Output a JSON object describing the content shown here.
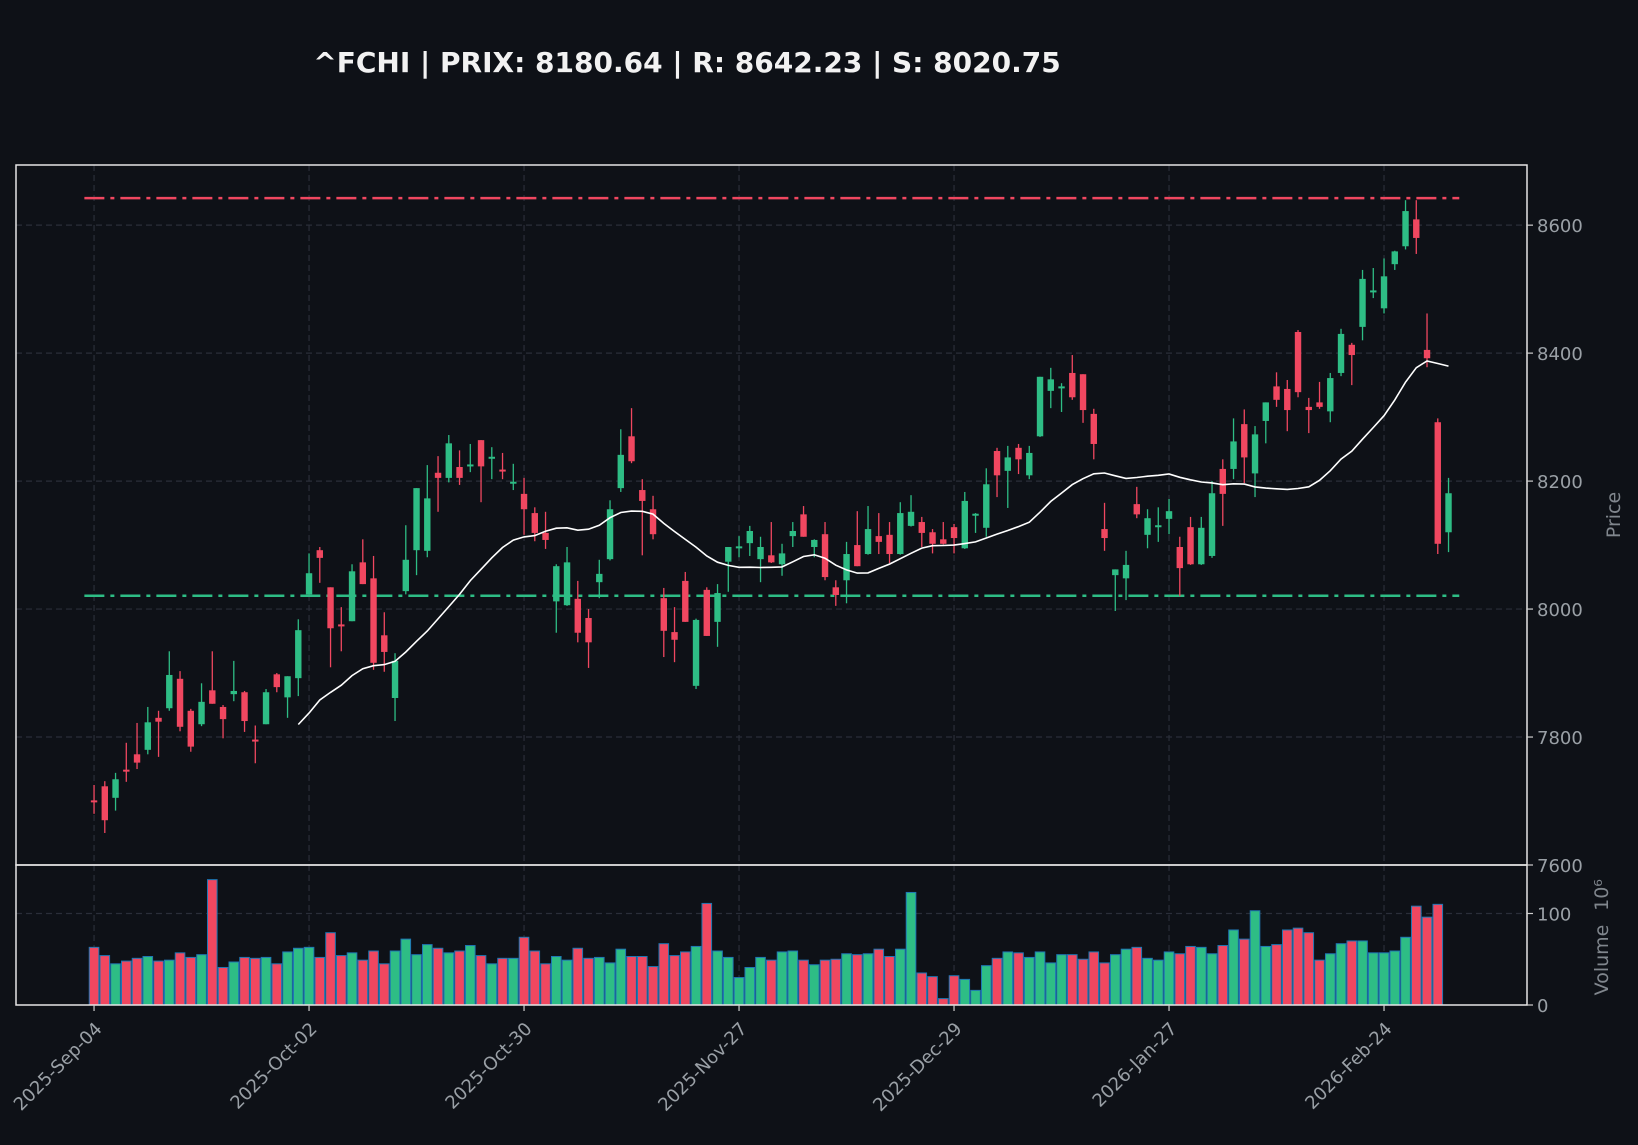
{
  "title": "^FCHI | PRIX: 8180.64 | R: 8642.23 | S: 8020.75",
  "colors": {
    "background": "#0e1117",
    "up": "#2ebd85",
    "down": "#f04760",
    "resistance": "#f04760",
    "support": "#2ebd85",
    "ma": "#ffffff",
    "volume_edge": "#1f77b4",
    "grid": "#2a2e39",
    "frame": "#e6e6e6"
  },
  "chart_data": {
    "type": "candlestick",
    "title": "^FCHI | PRIX: 8180.64 | R: 8642.23 | S: 8020.75",
    "price_label": "Price",
    "volume_label": "Volume",
    "volume_offset": "10⁶",
    "price_ylim": [
      7600,
      8694
    ],
    "volume_ylim": [
      0,
      153
    ],
    "xlim": [
      -7.26,
      133.3
    ],
    "price_ticks": [
      "7600",
      "7800",
      "8000",
      "8200",
      "8400",
      "8600"
    ],
    "volume_ticks": [
      "0",
      "100"
    ],
    "x_ticks": [
      {
        "index": 0,
        "label": "2025-Sep-04"
      },
      {
        "index": 20,
        "label": "2025-Oct-02"
      },
      {
        "index": 40,
        "label": "2025-Oct-30"
      },
      {
        "index": 60,
        "label": "2025-Nov-27"
      },
      {
        "index": 80,
        "label": "2025-Dec-29"
      },
      {
        "index": 100,
        "label": "2026-Jan-27"
      },
      {
        "index": 120,
        "label": "2026-Feb-24"
      }
    ],
    "resistance": 8642.23,
    "support": 8020.75,
    "ma_period": 20,
    "grid": true,
    "ohlc": [
      [
        7701,
        7725,
        7680,
        7699
      ],
      [
        7723,
        7731,
        7650,
        7670
      ],
      [
        7705,
        7744,
        7685,
        7734
      ],
      [
        7749,
        7791,
        7730,
        7747
      ],
      [
        7773,
        7822,
        7750,
        7760
      ],
      [
        7780,
        7847,
        7773,
        7823
      ],
      [
        7830,
        7841,
        7769,
        7824
      ],
      [
        7845,
        7934,
        7841,
        7897
      ],
      [
        7891,
        7903,
        7809,
        7816
      ],
      [
        7841,
        7844,
        7777,
        7785
      ],
      [
        7820,
        7884,
        7817,
        7855
      ],
      [
        7873,
        7934,
        7852,
        7852
      ],
      [
        7847,
        7850,
        7798,
        7828
      ],
      [
        7867,
        7919,
        7856,
        7872
      ],
      [
        7870,
        7872,
        7808,
        7825
      ],
      [
        7796,
        7818,
        7759,
        7794
      ],
      [
        7820,
        7875,
        7820,
        7870
      ],
      [
        7898,
        7900,
        7870,
        7878
      ],
      [
        7862,
        7895,
        7830,
        7895
      ],
      [
        7892,
        7984,
        7864,
        7967
      ],
      [
        8023,
        8087,
        8023,
        8056
      ],
      [
        8092,
        8097,
        8041,
        8080
      ],
      [
        8034,
        8034,
        7909,
        7970
      ],
      [
        7976,
        8003,
        7934,
        7974
      ],
      [
        7981,
        8070,
        7981,
        8059
      ],
      [
        8073,
        8109,
        8039,
        8039
      ],
      [
        8048,
        8083,
        7905,
        7916
      ],
      [
        7959,
        7995,
        7902,
        7933
      ],
      [
        7861,
        7931,
        7825,
        7919
      ],
      [
        8028,
        8131,
        8023,
        8077
      ],
      [
        8092,
        8189,
        8053,
        8189
      ],
      [
        8091,
        8225,
        8081,
        8173
      ],
      [
        8213,
        8239,
        8152,
        8205
      ],
      [
        8205,
        8272,
        8198,
        8259
      ],
      [
        8222,
        8248,
        8194,
        8205
      ],
      [
        8224,
        8258,
        8214,
        8226
      ],
      [
        8264,
        8264,
        8167,
        8223
      ],
      [
        8236,
        8253,
        8203,
        8238
      ],
      [
        8218,
        8244,
        8203,
        8216
      ],
      [
        8196,
        8227,
        8186,
        8199
      ],
      [
        8180,
        8205,
        8116,
        8156
      ],
      [
        8150,
        8159,
        8106,
        8119
      ],
      [
        8119,
        8152,
        8094,
        8108
      ],
      [
        8012,
        8070,
        7963,
        8067
      ],
      [
        8006,
        8097,
        8005,
        8073
      ],
      [
        8016,
        8044,
        7948,
        7963
      ],
      [
        7986,
        8000,
        7908,
        7948
      ],
      [
        8042,
        8077,
        8017,
        8055
      ],
      [
        8078,
        8170,
        8076,
        8156
      ],
      [
        8189,
        8281,
        8183,
        8241
      ],
      [
        8270,
        8314,
        8228,
        8231
      ],
      [
        8186,
        8203,
        8084,
        8169
      ],
      [
        8156,
        8177,
        8109,
        8117
      ],
      [
        8017,
        8033,
        7925,
        7966
      ],
      [
        7964,
        8003,
        7917,
        7952
      ],
      [
        8044,
        8058,
        7980,
        7980
      ],
      [
        7880,
        7985,
        7875,
        7983
      ],
      [
        8030,
        8034,
        7958,
        7958
      ],
      [
        7980,
        8039,
        7941,
        8025
      ],
      [
        8074,
        8097,
        8027,
        8097
      ],
      [
        8096,
        8114,
        8081,
        8098
      ],
      [
        8103,
        8130,
        8083,
        8122
      ],
      [
        8078,
        8113,
        8042,
        8097
      ],
      [
        8084,
        8136,
        8072,
        8073
      ],
      [
        8070,
        8102,
        8052,
        8087
      ],
      [
        8114,
        8136,
        8097,
        8122
      ],
      [
        8148,
        8161,
        8113,
        8113
      ],
      [
        8097,
        8109,
        8081,
        8108
      ],
      [
        8117,
        8136,
        8045,
        8050
      ],
      [
        8034,
        8045,
        8005,
        8022
      ],
      [
        8045,
        8105,
        8009,
        8086
      ],
      [
        8100,
        8153,
        8067,
        8067
      ],
      [
        8086,
        8161,
        8085,
        8125
      ],
      [
        8114,
        8150,
        8086,
        8105
      ],
      [
        8116,
        8136,
        8072,
        8086
      ],
      [
        8086,
        8167,
        8085,
        8150
      ],
      [
        8130,
        8178,
        8129,
        8152
      ],
      [
        8136,
        8144,
        8097,
        8119
      ],
      [
        8120,
        8125,
        8087,
        8102
      ],
      [
        8109,
        8136,
        8101,
        8102
      ],
      [
        8128,
        8133,
        8087,
        8111
      ],
      [
        8095,
        8183,
        8094,
        8169
      ],
      [
        8146,
        8150,
        8119,
        8149
      ],
      [
        8127,
        8220,
        8113,
        8195
      ],
      [
        8247,
        8252,
        8175,
        8209
      ],
      [
        8216,
        8255,
        8158,
        8237
      ],
      [
        8252,
        8258,
        8211,
        8234
      ],
      [
        8209,
        8255,
        8203,
        8244
      ],
      [
        8270,
        8363,
        8269,
        8363
      ],
      [
        8341,
        8377,
        8314,
        8359
      ],
      [
        8346,
        8353,
        8308,
        8348
      ],
      [
        8369,
        8397,
        8327,
        8331
      ],
      [
        8367,
        8367,
        8291,
        8311
      ],
      [
        8305,
        8313,
        8234,
        8258
      ],
      [
        8125,
        8166,
        8091,
        8111
      ],
      [
        8053,
        8062,
        7997,
        8062
      ],
      [
        8048,
        8091,
        8014,
        8069
      ],
      [
        8164,
        8191,
        8142,
        8148
      ],
      [
        8116,
        8156,
        8095,
        8142
      ],
      [
        8129,
        8159,
        8105,
        8131
      ],
      [
        8141,
        8172,
        8117,
        8153
      ],
      [
        8097,
        8113,
        8020,
        8064
      ],
      [
        8128,
        8144,
        8069,
        8070
      ],
      [
        8070,
        8144,
        8069,
        8127
      ],
      [
        8083,
        8200,
        8080,
        8181
      ],
      [
        8219,
        8234,
        8130,
        8180
      ],
      [
        8219,
        8298,
        8203,
        8262
      ],
      [
        8289,
        8312,
        8197,
        8237
      ],
      [
        8212,
        8286,
        8175,
        8273
      ],
      [
        8294,
        8323,
        8259,
        8323
      ],
      [
        8348,
        8370,
        8316,
        8327
      ],
      [
        8344,
        8358,
        8278,
        8311
      ],
      [
        8433,
        8436,
        8331,
        8339
      ],
      [
        8316,
        8330,
        8275,
        8311
      ],
      [
        8323,
        8355,
        8313,
        8316
      ],
      [
        8309,
        8369,
        8292,
        8361
      ],
      [
        8369,
        8438,
        8364,
        8430
      ],
      [
        8413,
        8416,
        8350,
        8397
      ],
      [
        8441,
        8530,
        8420,
        8516
      ],
      [
        8496,
        8533,
        8486,
        8498
      ],
      [
        8470,
        8548,
        8462,
        8520
      ],
      [
        8539,
        8560,
        8530,
        8559
      ],
      [
        8567,
        8639,
        8562,
        8622
      ],
      [
        8609,
        8639,
        8555,
        8580
      ],
      [
        8405,
        8462,
        8378,
        8392
      ],
      [
        8292,
        8298,
        8086,
        8102
      ],
      [
        8120,
        8205,
        8089,
        8181
      ]
    ],
    "volume": [
      63,
      54,
      45,
      48,
      51,
      53,
      48,
      49,
      57,
      52,
      55,
      137,
      41,
      47,
      52,
      51,
      52,
      45,
      58,
      62,
      63,
      52,
      79,
      54,
      57,
      49,
      59,
      45,
      59,
      72,
      55,
      66,
      62,
      57,
      59,
      65,
      54,
      45,
      51,
      51,
      74,
      59,
      45,
      53,
      49,
      62,
      51,
      52,
      46,
      61,
      53,
      53,
      42,
      67,
      54,
      58,
      64,
      111,
      59,
      52,
      30,
      41,
      52,
      49,
      58,
      59,
      49,
      44,
      49,
      50,
      56,
      55,
      56,
      61,
      53,
      61,
      123,
      35,
      31,
      7,
      32,
      28,
      16,
      43,
      51,
      58,
      57,
      52,
      58,
      46,
      55,
      55,
      50,
      58,
      46,
      55,
      61,
      63,
      51,
      49,
      58,
      56,
      64,
      63,
      56,
      65,
      82,
      72,
      103,
      64,
      66,
      82,
      84,
      79,
      49,
      56,
      67,
      70,
      70,
      57,
      57,
      59,
      74,
      108,
      96,
      110,
      null
    ]
  }
}
